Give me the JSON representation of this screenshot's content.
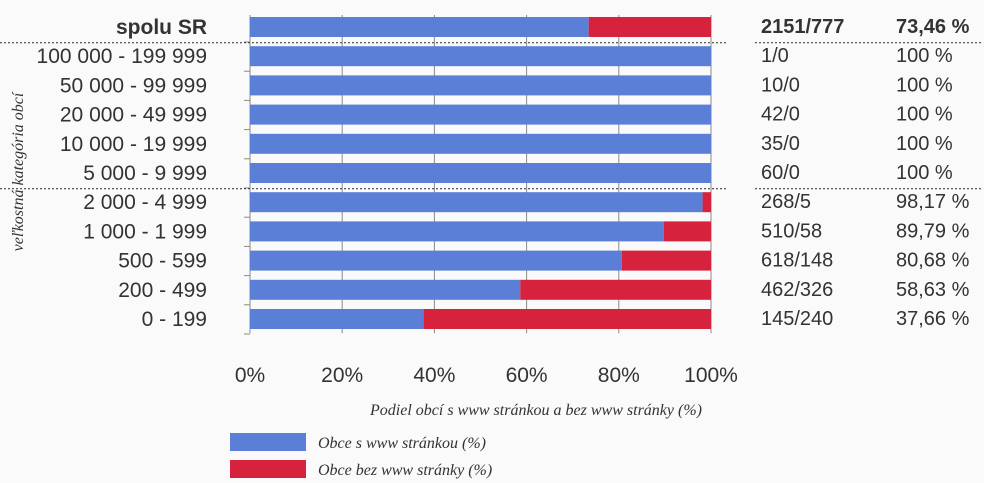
{
  "chart_data": {
    "type": "bar",
    "orientation": "horizontal",
    "stacked": true,
    "percent_stacked": true,
    "categories": [
      "spolu SR",
      "100 000 - 199 999",
      "50 000 - 99 999",
      "20 000 - 49 999",
      "10 000 - 19 999",
      "5 000 - 9 999",
      "2 000 - 4 999",
      "1 000 - 1 999",
      "500 - 599",
      "200 - 499",
      "0 - 199"
    ],
    "series": [
      {
        "name": "Obce s www stránkou (%)",
        "color": "#5b7fd6",
        "values": [
          73.46,
          100,
          100,
          100,
          100,
          100,
          98.17,
          89.79,
          80.68,
          58.63,
          37.66
        ]
      },
      {
        "name": "Obce bez  www stránky (%)",
        "color": "#d6223c",
        "values": [
          26.54,
          0,
          0,
          0,
          0,
          0,
          1.83,
          10.21,
          19.32,
          41.37,
          62.34
        ]
      }
    ],
    "counts": [
      "2151/777",
      "1/0",
      "10/0",
      "42/0",
      "35/0",
      "60/0",
      "268/5",
      "510/58",
      "618/148",
      "462/326",
      "145/240"
    ],
    "percent_labels": [
      "73,46 %",
      "100 %",
      "100 %",
      "100 %",
      "100 %",
      "100 %",
      "98,17 %",
      "89,79 %",
      "80,68 %",
      "58,63 %",
      "37,66 %"
    ],
    "x_ticks": [
      "0%",
      "20%",
      "40%",
      "60%",
      "80%",
      "100%"
    ],
    "xlim": [
      0,
      100
    ],
    "xlabel": "Podiel obcí s www stránkou a bez www stránky (%)",
    "ylabel": "veľkostná kategória obcí",
    "legend": "bottom-center",
    "grid": true
  }
}
